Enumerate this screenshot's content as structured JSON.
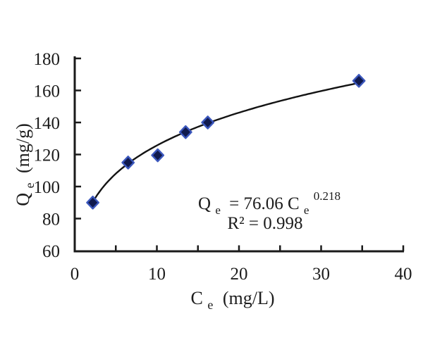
{
  "figure": {
    "background": "#ffffff"
  },
  "chart_data": {
    "type": "scatter",
    "title": "",
    "xlabel": {
      "main": "C",
      "sub": "e",
      "unit": "(mg/L)"
    },
    "ylabel": {
      "main": "Q",
      "sub": "e",
      "unit": "(mg/g)"
    },
    "xlim": [
      0,
      40
    ],
    "ylim": [
      60,
      180
    ],
    "x_tick_labels": [
      0,
      10,
      20,
      30,
      40
    ],
    "x_tick_marks": [
      5,
      10,
      15,
      20,
      25,
      30,
      35,
      40
    ],
    "y_tick_labels": [
      60,
      80,
      100,
      120,
      140,
      160,
      180
    ],
    "y_tick_marks": [
      80,
      100,
      120,
      140,
      160,
      180
    ],
    "grid": false,
    "legend": "none",
    "points": [
      {
        "x": 2.2,
        "y": 90
      },
      {
        "x": 6.5,
        "y": 115
      },
      {
        "x": 10.1,
        "y": 119.5
      },
      {
        "x": 13.5,
        "y": 134
      },
      {
        "x": 16.2,
        "y": 140
      },
      {
        "x": 34.6,
        "y": 166
      }
    ],
    "fit": {
      "model": "power",
      "coefficient": 76.06,
      "exponent": 0.218,
      "x_start": 2.2,
      "x_end": 34.6
    },
    "annotation": {
      "lhs": "Q",
      "lhs_sub": "e",
      "rhs": "= 76.06 C",
      "rhs_sub": "e",
      "superscript": "0.218",
      "line2": "R² = 0.998"
    },
    "style": {
      "marker_shape": "diamond",
      "marker_fill": "#101a4e",
      "marker_stroke": "#3b57bd",
      "curve_color": "#131313",
      "axis_color": "#1a1a1a",
      "text_color": "#1c1c1c"
    }
  }
}
